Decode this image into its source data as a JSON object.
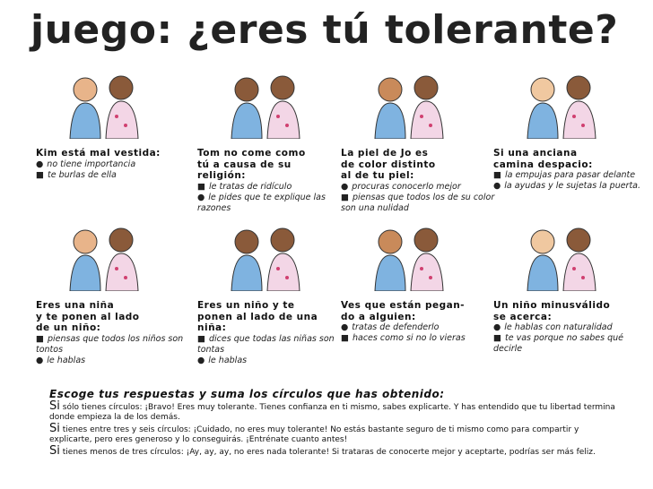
{
  "title": "juego: ¿eres tú tolerante?",
  "cards": [
    {
      "question": "Kim está mal vestida:",
      "options": [
        {
          "mark": "circle",
          "text": "no tiene importancia"
        },
        {
          "mark": "square",
          "text": "te burlas de ella"
        }
      ]
    },
    {
      "question": "Tom no come como\ntú a causa de su\nreligión:",
      "options": [
        {
          "mark": "square",
          "text": "le tratas de ridículo"
        },
        {
          "mark": "circle",
          "text": "le pides que te explique las razones"
        }
      ]
    },
    {
      "question": "La piel de Jo es\nde color distinto\nal de tu piel:",
      "options": [
        {
          "mark": "circle",
          "text": "procuras conocerlo mejor"
        },
        {
          "mark": "square",
          "text": "piensas que todos los de su color son una nulidad"
        }
      ]
    },
    {
      "question": "Si una anciana\ncamina despacio:",
      "options": [
        {
          "mark": "square",
          "text": "la empujas para pasar delante"
        },
        {
          "mark": "circle",
          "text": "la ayudas y le sujetas la puerta."
        }
      ]
    },
    {
      "question": "Eres una niña\ny te ponen al lado\nde un niño:",
      "options": [
        {
          "mark": "square",
          "text": "piensas que todos los niños son tontos"
        },
        {
          "mark": "circle",
          "text": "le hablas"
        }
      ]
    },
    {
      "question": "Eres un niño y te\nponen al lado de una\nniña:",
      "options": [
        {
          "mark": "square",
          "text": "dices que todas las niñas son tontas"
        },
        {
          "mark": "circle",
          "text": "le hablas"
        }
      ]
    },
    {
      "question": "Ves que están pegan-\ndo a alguien:",
      "options": [
        {
          "mark": "circle",
          "text": "tratas de defenderlo"
        },
        {
          "mark": "square",
          "text": "haces como si no lo vieras"
        }
      ]
    },
    {
      "question": "Un niño minusválido\nse acerca:",
      "options": [
        {
          "mark": "circle",
          "text": "le hablas con naturalidad"
        },
        {
          "mark": "square",
          "text": "te vas porque no sabes qué decirle"
        }
      ]
    }
  ],
  "results": {
    "heading": "Escoge tus respuestas y suma los círculos que has obtenido:",
    "items": [
      {
        "si": "Si",
        "text": "sólo tienes círculos: ¡Bravo! Eres muy tolerante. Tienes confianza en ti mismo, sabes explicarte. Y has entendido que tu libertad termina donde empieza la de los demás."
      },
      {
        "si": "Si",
        "text": "tienes entre tres y seis círculos: ¡Cuidado, no eres muy tolerante! No estás bastante seguro de ti mismo como para compartir y explicarte, pero eres generoso y lo conseguirás. ¡Entrénate cuanto antes!"
      },
      {
        "si": "Si",
        "text": "tienes menos de tres círculos: ¡Ay, ay, ay, no eres nada tolerante! Si trataras de conocerte mejor y aceptarte, podrías ser más feliz."
      }
    ]
  }
}
